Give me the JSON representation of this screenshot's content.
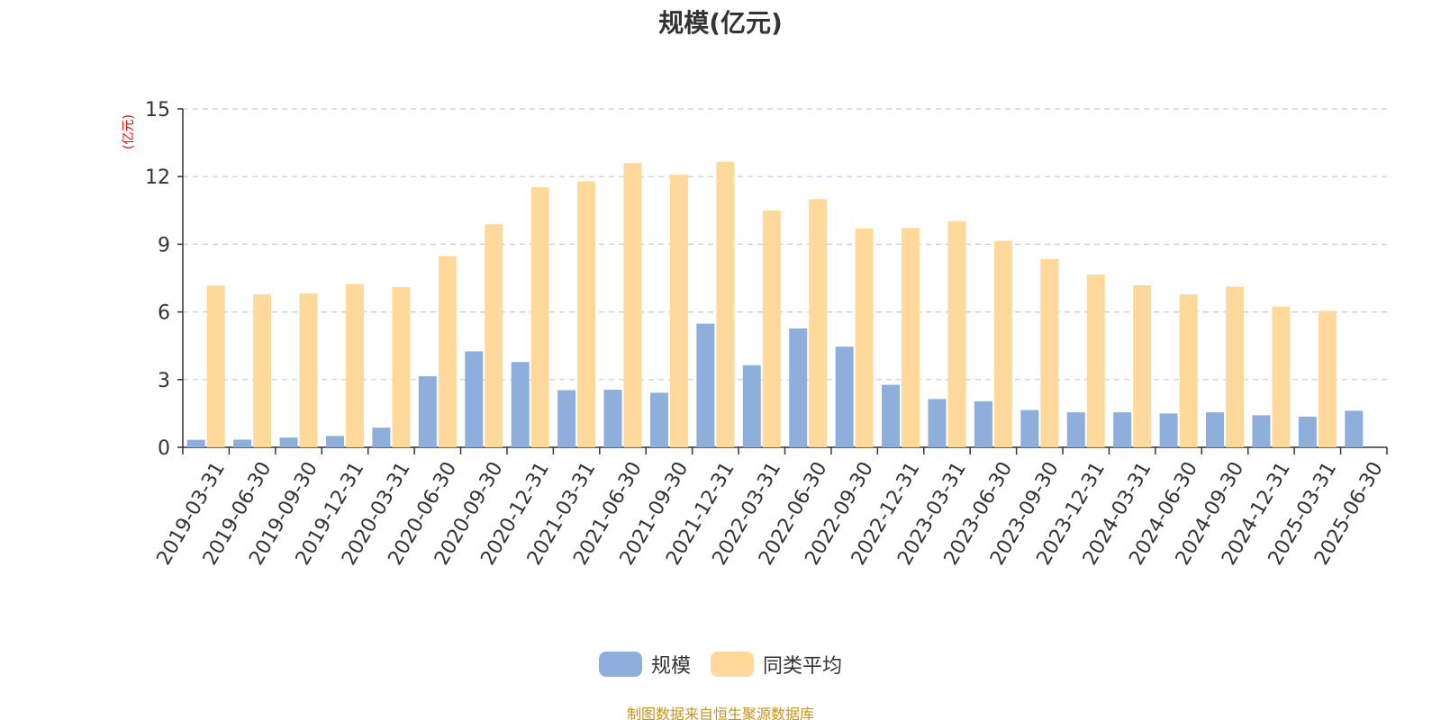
{
  "chart_data": {
    "type": "bar",
    "title": "规模(亿元)",
    "ylabel": "(亿元)",
    "xlabel": "",
    "ylim": [
      0,
      15
    ],
    "yticks": [
      0,
      3,
      6,
      9,
      12,
      15
    ],
    "grid": true,
    "legend_position": "bottom",
    "categories": [
      "2019-03-31",
      "2019-06-30",
      "2019-09-30",
      "2019-12-31",
      "2020-03-31",
      "2020-06-30",
      "2020-09-30",
      "2020-12-31",
      "2021-03-31",
      "2021-06-30",
      "2021-09-30",
      "2021-12-31",
      "2022-03-31",
      "2022-06-30",
      "2022-09-30",
      "2022-12-31",
      "2023-03-31",
      "2023-06-30",
      "2023-09-30",
      "2023-12-31",
      "2024-03-31",
      "2024-06-30",
      "2024-09-30",
      "2024-12-31",
      "2025-03-31",
      "2025-06-30"
    ],
    "series": [
      {
        "name": "规模",
        "color": "#8eaedb",
        "values": [
          0.33,
          0.34,
          0.43,
          0.5,
          0.87,
          3.15,
          4.25,
          3.78,
          2.53,
          2.55,
          2.42,
          5.48,
          3.64,
          5.27,
          4.46,
          2.77,
          2.14,
          2.04,
          1.65,
          1.55,
          1.55,
          1.5,
          1.55,
          1.42,
          1.36,
          1.62
        ]
      },
      {
        "name": "同类平均",
        "color": "#ffd99b",
        "values": [
          7.17,
          6.78,
          6.82,
          7.24,
          7.1,
          8.48,
          9.89,
          11.53,
          11.79,
          12.6,
          12.08,
          12.66,
          10.5,
          11.0,
          9.7,
          9.72,
          10.02,
          9.15,
          8.35,
          7.66,
          7.18,
          6.78,
          7.12,
          6.24,
          6.05,
          null
        ]
      }
    ]
  },
  "legend": {
    "items": [
      {
        "label": "规模",
        "color": "#8eaedb"
      },
      {
        "label": "同类平均",
        "color": "#ffd99b"
      }
    ]
  },
  "footer": {
    "source": "制图数据来自恒生聚源数据库",
    "source_color": "#c8941c"
  },
  "colors": {
    "axis": "#333333",
    "grid": "#cccccc",
    "unit_label": "#ff0000"
  }
}
